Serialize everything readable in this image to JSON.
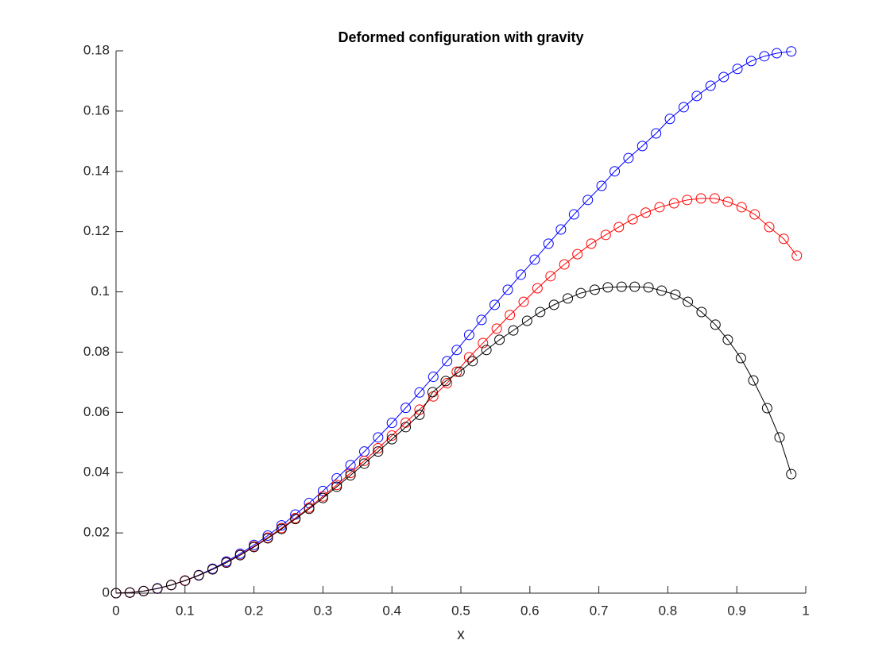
{
  "chart_data": {
    "type": "line",
    "title": "Deformed configuration with gravity",
    "x_label": "x",
    "xlim": [
      0,
      1
    ],
    "xticks": [
      0,
      0.1,
      0.2,
      0.3,
      0.4,
      0.5,
      0.6,
      0.7,
      0.8,
      0.9,
      1
    ],
    "ylim": [
      0,
      0.18
    ],
    "yticks": [
      0,
      0.02,
      0.04,
      0.06,
      0.08,
      0.1,
      0.12,
      0.14,
      0.16,
      0.18
    ],
    "grid": false,
    "marker": "circle",
    "series": [
      {
        "color": "#0000ff",
        "x": [
          0,
          0.02,
          0.04,
          0.06,
          0.08,
          0.1,
          0.12,
          0.14,
          0.16,
          0.18,
          0.2,
          0.22,
          0.24,
          0.26,
          0.28,
          0.3,
          0.32,
          0.34,
          0.36,
          0.38,
          0.4,
          0.42,
          0.44,
          0.46,
          0.48,
          0.494,
          0.512,
          0.53,
          0.549,
          0.568,
          0.587,
          0.607,
          0.627,
          0.645,
          0.664,
          0.684,
          0.704,
          0.723,
          0.743,
          0.763,
          0.783,
          0.803,
          0.823,
          0.842,
          0.862,
          0.881,
          0.901,
          0.921,
          0.94,
          0.958,
          0.979
        ],
        "values": [
          0,
          0.0002,
          0.0007,
          0.0016,
          0.0027,
          0.0042,
          0.006,
          0.0081,
          0.0105,
          0.0131,
          0.016,
          0.0191,
          0.0225,
          0.0261,
          0.0299,
          0.0339,
          0.0381,
          0.0425,
          0.047,
          0.0517,
          0.0565,
          0.0615,
          0.0666,
          0.0718,
          0.077,
          0.0807,
          0.0857,
          0.0907,
          0.0957,
          0.1007,
          0.1057,
          0.1107,
          0.116,
          0.1207,
          0.1257,
          0.1305,
          0.1352,
          0.14,
          0.1444,
          0.1484,
          0.1526,
          0.1574,
          0.1613,
          0.165,
          0.1684,
          0.1713,
          0.174,
          0.1766,
          0.1782,
          0.1792,
          0.1798
        ]
      },
      {
        "color": "#ff0000",
        "x": [
          0,
          0.02,
          0.04,
          0.06,
          0.08,
          0.1,
          0.12,
          0.14,
          0.16,
          0.18,
          0.2,
          0.22,
          0.24,
          0.26,
          0.28,
          0.3,
          0.32,
          0.34,
          0.36,
          0.38,
          0.4,
          0.42,
          0.44,
          0.46,
          0.48,
          0.494,
          0.512,
          0.532,
          0.552,
          0.571,
          0.591,
          0.611,
          0.63,
          0.65,
          0.669,
          0.689,
          0.71,
          0.729,
          0.749,
          0.768,
          0.788,
          0.809,
          0.828,
          0.848,
          0.868,
          0.887,
          0.907,
          0.926,
          0.947,
          0.968,
          0.987
        ],
        "values": [
          0,
          0.0002,
          0.0007,
          0.0015,
          0.0027,
          0.0042,
          0.0059,
          0.0079,
          0.0102,
          0.0127,
          0.0155,
          0.0184,
          0.0216,
          0.0249,
          0.0284,
          0.0321,
          0.0359,
          0.0399,
          0.0439,
          0.0481,
          0.0523,
          0.0566,
          0.0609,
          0.0653,
          0.0697,
          0.0735,
          0.0783,
          0.083,
          0.0878,
          0.0923,
          0.0967,
          0.1012,
          0.1052,
          0.1091,
          0.1125,
          0.116,
          0.1189,
          0.1215,
          0.1241,
          0.1263,
          0.1281,
          0.1294,
          0.1305,
          0.131,
          0.131,
          0.1299,
          0.1281,
          0.1257,
          0.1215,
          0.1176,
          0.112
        ]
      },
      {
        "color": "#000000",
        "x": [
          0,
          0.02,
          0.04,
          0.06,
          0.08,
          0.1,
          0.12,
          0.14,
          0.16,
          0.18,
          0.2,
          0.22,
          0.24,
          0.26,
          0.28,
          0.3,
          0.32,
          0.34,
          0.36,
          0.38,
          0.4,
          0.42,
          0.44,
          0.459,
          0.478,
          0.498,
          0.517,
          0.537,
          0.556,
          0.576,
          0.596,
          0.615,
          0.635,
          0.655,
          0.674,
          0.694,
          0.713,
          0.733,
          0.752,
          0.772,
          0.791,
          0.811,
          0.829,
          0.849,
          0.869,
          0.887,
          0.906,
          0.924,
          0.944,
          0.962,
          0.979
        ],
        "values": [
          0,
          0.0002,
          0.0007,
          0.0015,
          0.0027,
          0.0041,
          0.0059,
          0.0079,
          0.0101,
          0.0126,
          0.0153,
          0.0182,
          0.0213,
          0.0246,
          0.028,
          0.0316,
          0.0353,
          0.0391,
          0.043,
          0.047,
          0.0511,
          0.0551,
          0.0592,
          0.0667,
          0.0704,
          0.0735,
          0.077,
          0.0807,
          0.0841,
          0.0872,
          0.0904,
          0.0933,
          0.0957,
          0.0978,
          0.0996,
          0.1007,
          0.1015,
          0.1017,
          0.1017,
          0.1015,
          0.1004,
          0.0991,
          0.0967,
          0.0933,
          0.0891,
          0.0841,
          0.078,
          0.0706,
          0.0614,
          0.0517,
          0.0395
        ]
      }
    ]
  }
}
